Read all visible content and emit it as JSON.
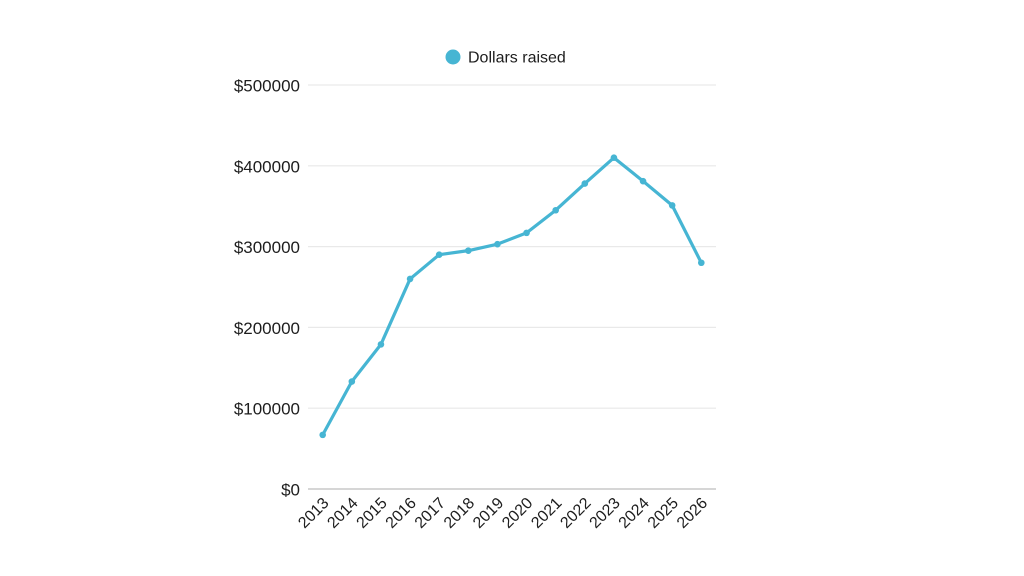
{
  "page": {
    "background_color": "#ffffff",
    "text_color": "#1d1d1d"
  },
  "legend": {
    "label": "Dollars raised",
    "marker_color": "#46b5d3"
  },
  "chart_data": {
    "type": "line",
    "title": "",
    "xlabel": "",
    "ylabel": "",
    "categories": [
      "2013",
      "2014",
      "2015",
      "2016",
      "2017",
      "2018",
      "2019",
      "2020",
      "2021",
      "2022",
      "2023",
      "2024",
      "2025",
      "2026"
    ],
    "series": [
      {
        "name": "Dollars raised",
        "color": "#46b5d3",
        "values": [
          67000,
          133000,
          179000,
          260000,
          290000,
          295000,
          303000,
          317000,
          345000,
          378000,
          410000,
          381000,
          351000,
          280000
        ]
      }
    ],
    "ylim": [
      0,
      500000
    ],
    "ytick_values": [
      0,
      100000,
      200000,
      300000,
      400000,
      500000
    ],
    "ytick_labels": [
      "$0",
      "$100000",
      "$200000",
      "$300000",
      "$400000",
      "$500000"
    ],
    "grid": true,
    "legend_position": "top-center",
    "style": {
      "gridline_color": "#e9e9e9",
      "axis_line_color": "#c9c9c9",
      "label_color": "#1d1d1d",
      "line_width": 3.2,
      "marker_radius": 3.3,
      "x_labels_rotation_deg": -45
    }
  }
}
